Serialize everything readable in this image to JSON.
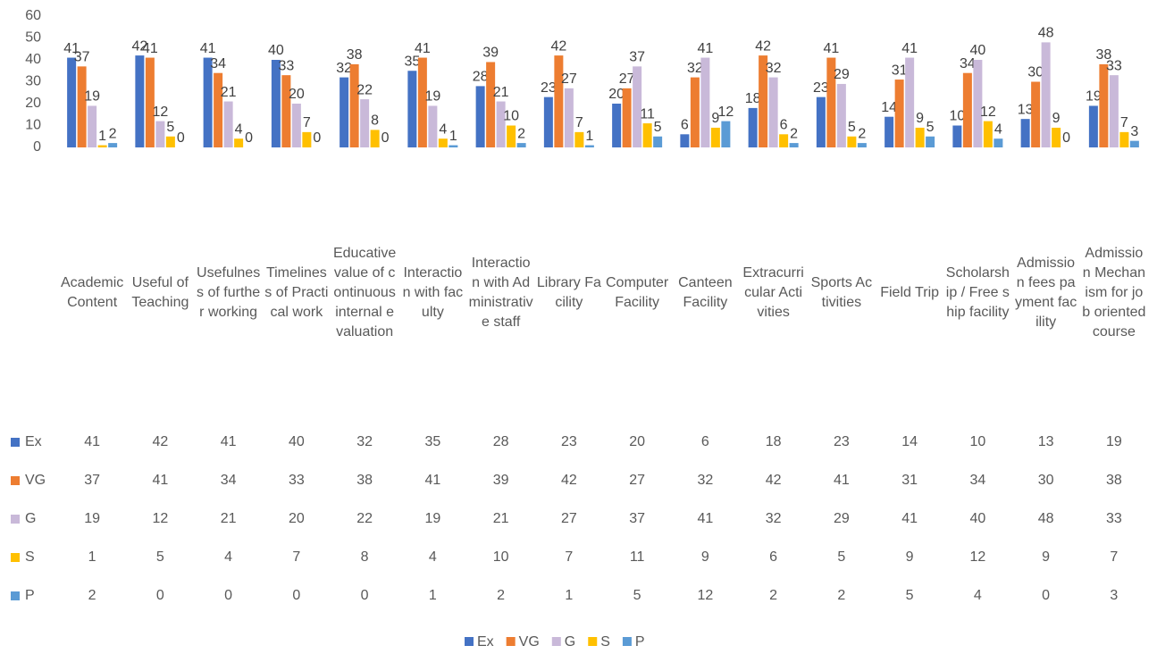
{
  "chart_data": {
    "type": "bar",
    "categories": [
      "Academic Content",
      "Useful of Teaching",
      "Usefulness of further working",
      "Timeliness of Practical work",
      "Educative value of continuous internal evaluation",
      "Interaction with faculty",
      "Interaction with Administrative staff",
      "Library Facility",
      "Computer Facility",
      "Canteen Facility",
      "Extracurricular Activities",
      "Sports Activities",
      "Field Trip",
      "Scholarship / Free ship facility",
      "Admission fees payment facility",
      "Admission Mechanism for job oriented course"
    ],
    "series": [
      {
        "name": "Ex",
        "color": "#4472c4",
        "values": [
          41,
          42,
          41,
          40,
          32,
          35,
          28,
          23,
          20,
          6,
          18,
          23,
          14,
          10,
          13,
          19
        ]
      },
      {
        "name": "VG",
        "color": "#ed7d31",
        "values": [
          37,
          41,
          34,
          33,
          38,
          41,
          39,
          42,
          27,
          32,
          42,
          41,
          31,
          34,
          30,
          38
        ]
      },
      {
        "name": "G",
        "color": "#c9b9d9",
        "values": [
          19,
          12,
          21,
          20,
          22,
          19,
          21,
          27,
          37,
          41,
          32,
          29,
          41,
          40,
          48,
          33
        ]
      },
      {
        "name": "S",
        "color": "#ffc000",
        "values": [
          1,
          5,
          4,
          7,
          8,
          4,
          10,
          7,
          11,
          9,
          6,
          5,
          9,
          12,
          9,
          7
        ]
      },
      {
        "name": "P",
        "color": "#5b9bd5",
        "values": [
          2,
          0,
          0,
          0,
          0,
          1,
          2,
          1,
          5,
          12,
          2,
          2,
          5,
          4,
          0,
          3
        ]
      }
    ],
    "ylim": [
      0,
      60
    ],
    "yticks": [
      0,
      10,
      20,
      30,
      40,
      50,
      60
    ],
    "grid": false,
    "legend": "bottom"
  }
}
